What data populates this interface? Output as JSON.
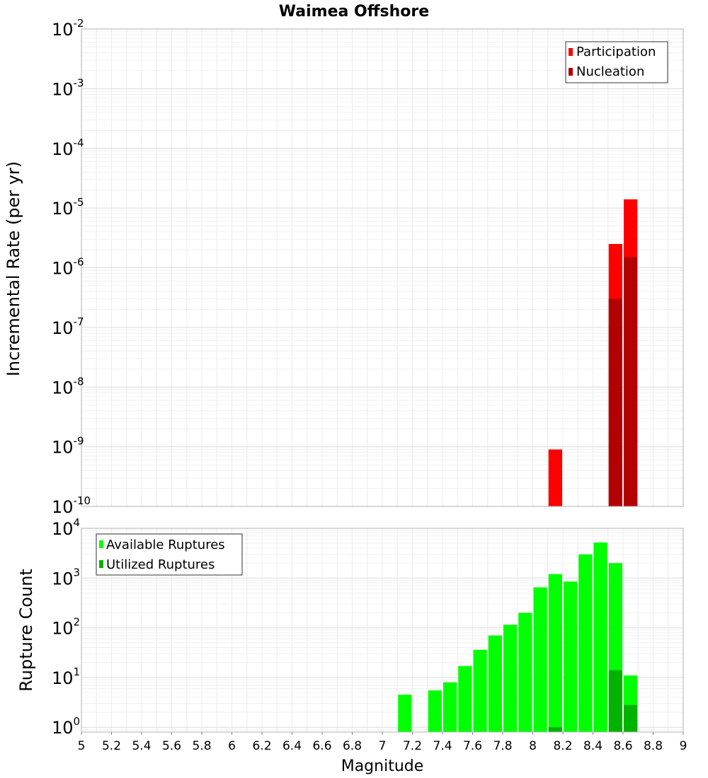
{
  "chart_data": [
    {
      "type": "bar",
      "title": "Waimea Offshore",
      "xlabel": "",
      "ylabel": "Incremental Rate (per yr)",
      "yscale": "log",
      "ylim": [
        1e-10,
        0.01
      ],
      "xlim": [
        5,
        9
      ],
      "bar_width": 0.1,
      "y_ticks": [
        {
          "base": "10",
          "exp": "-2"
        },
        {
          "base": "10",
          "exp": "-3"
        },
        {
          "base": "10",
          "exp": "-4"
        },
        {
          "base": "10",
          "exp": "-5"
        },
        {
          "base": "10",
          "exp": "-6"
        },
        {
          "base": "10",
          "exp": "-7"
        },
        {
          "base": "10",
          "exp": "-8"
        },
        {
          "base": "10",
          "exp": "-9"
        },
        {
          "base": "10",
          "exp": "-10"
        }
      ],
      "legend_position": "top-right",
      "series": [
        {
          "name": "Participation",
          "color": "#ff0000",
          "x": [
            8.15,
            8.55,
            8.65
          ],
          "values": [
            9e-10,
            2.5e-06,
            1.4e-05
          ]
        },
        {
          "name": "Nucleation",
          "color": "#b30000",
          "x": [
            8.55,
            8.65
          ],
          "values": [
            3e-07,
            1.5e-06
          ]
        }
      ]
    },
    {
      "type": "bar",
      "title": "",
      "xlabel": "Magnitude",
      "ylabel": "Rupture Count",
      "yscale": "log",
      "ylim": [
        0.8,
        10000
      ],
      "xlim": [
        5,
        9
      ],
      "bar_width": 0.1,
      "y_ticks": [
        {
          "base": "10",
          "exp": "4"
        },
        {
          "base": "10",
          "exp": "3"
        },
        {
          "base": "10",
          "exp": "2"
        },
        {
          "base": "10",
          "exp": "1"
        },
        {
          "base": "10",
          "exp": "0"
        }
      ],
      "x_tick_labels": [
        "5",
        "5.2",
        "5.4",
        "5.6",
        "5.8",
        "6",
        "6.2",
        "6.4",
        "6.6",
        "6.8",
        "7",
        "7.2",
        "7.4",
        "7.6",
        "7.8",
        "8",
        "8.2",
        "8.4",
        "8.6",
        "8.8",
        "9"
      ],
      "legend_position": "top-left",
      "series": [
        {
          "name": "Available Ruptures",
          "color": "#00ff00",
          "x": [
            7.15,
            7.35,
            7.45,
            7.55,
            7.65,
            7.75,
            7.85,
            7.95,
            8.05,
            8.15,
            8.25,
            8.35,
            8.45,
            8.55,
            8.65
          ],
          "values": [
            4.5,
            5.5,
            8,
            17,
            36,
            70,
            115,
            200,
            650,
            1200,
            850,
            3000,
            5200,
            2000,
            11
          ]
        },
        {
          "name": "Utilized Ruptures",
          "color": "#00b300",
          "x": [
            8.15,
            8.55,
            8.65
          ],
          "values": [
            1,
            14,
            2.8
          ]
        }
      ]
    }
  ]
}
